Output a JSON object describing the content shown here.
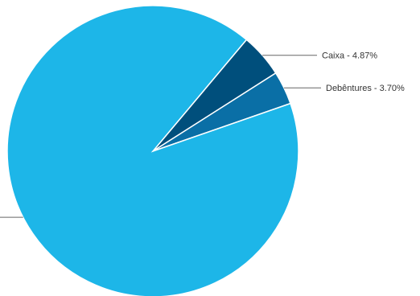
{
  "chart_data": {
    "type": "pie",
    "slices": [
      {
        "label": "Caixa - 4.87%",
        "value": 4.87,
        "color": "#004f7c",
        "show_label": true
      },
      {
        "label": "Debêntures - 3.70%",
        "value": 3.7,
        "color": "#0a6fa6",
        "show_label": true
      },
      {
        "label": "",
        "value": 91.43,
        "color": "#1db6e8",
        "show_label": false
      }
    ],
    "start_angle_deg": 40,
    "direction": "clockwise"
  }
}
